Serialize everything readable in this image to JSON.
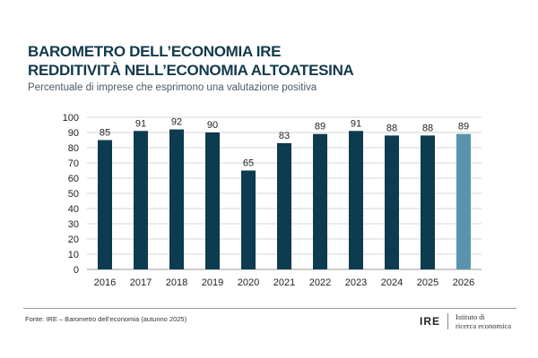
{
  "header": {
    "title_line1": "BAROMETRO DELL’ECONOMIA IRE",
    "title_line2": "REDDITIVITÀ NELL’ECONOMIA ALTOATESINA",
    "subtitle": "Percentuale di imprese che esprimono una valutazione positiva"
  },
  "footer": {
    "source": "Fonte: IRE – Barometro dell’economia (autunno 2025)",
    "logo_short": "IRE",
    "logo_line1": "Istituto di",
    "logo_line2": "ricerca economica"
  },
  "colors": {
    "bar": "#0d3b4f",
    "highlight": "#5b93ad",
    "grid": "#d6d6d6"
  },
  "chart_data": {
    "type": "bar",
    "categories": [
      "2016",
      "2017",
      "2018",
      "2019",
      "2020",
      "2021",
      "2022",
      "2023",
      "2024",
      "2025",
      "2026"
    ],
    "values": [
      85,
      91,
      92,
      90,
      65,
      83,
      89,
      91,
      88,
      88,
      89
    ],
    "highlighted": [
      "2026"
    ],
    "ylim": [
      0,
      100
    ],
    "yticks": [
      0,
      10,
      20,
      30,
      40,
      50,
      60,
      70,
      80,
      90,
      100
    ],
    "grid": true,
    "data_labels": true
  }
}
